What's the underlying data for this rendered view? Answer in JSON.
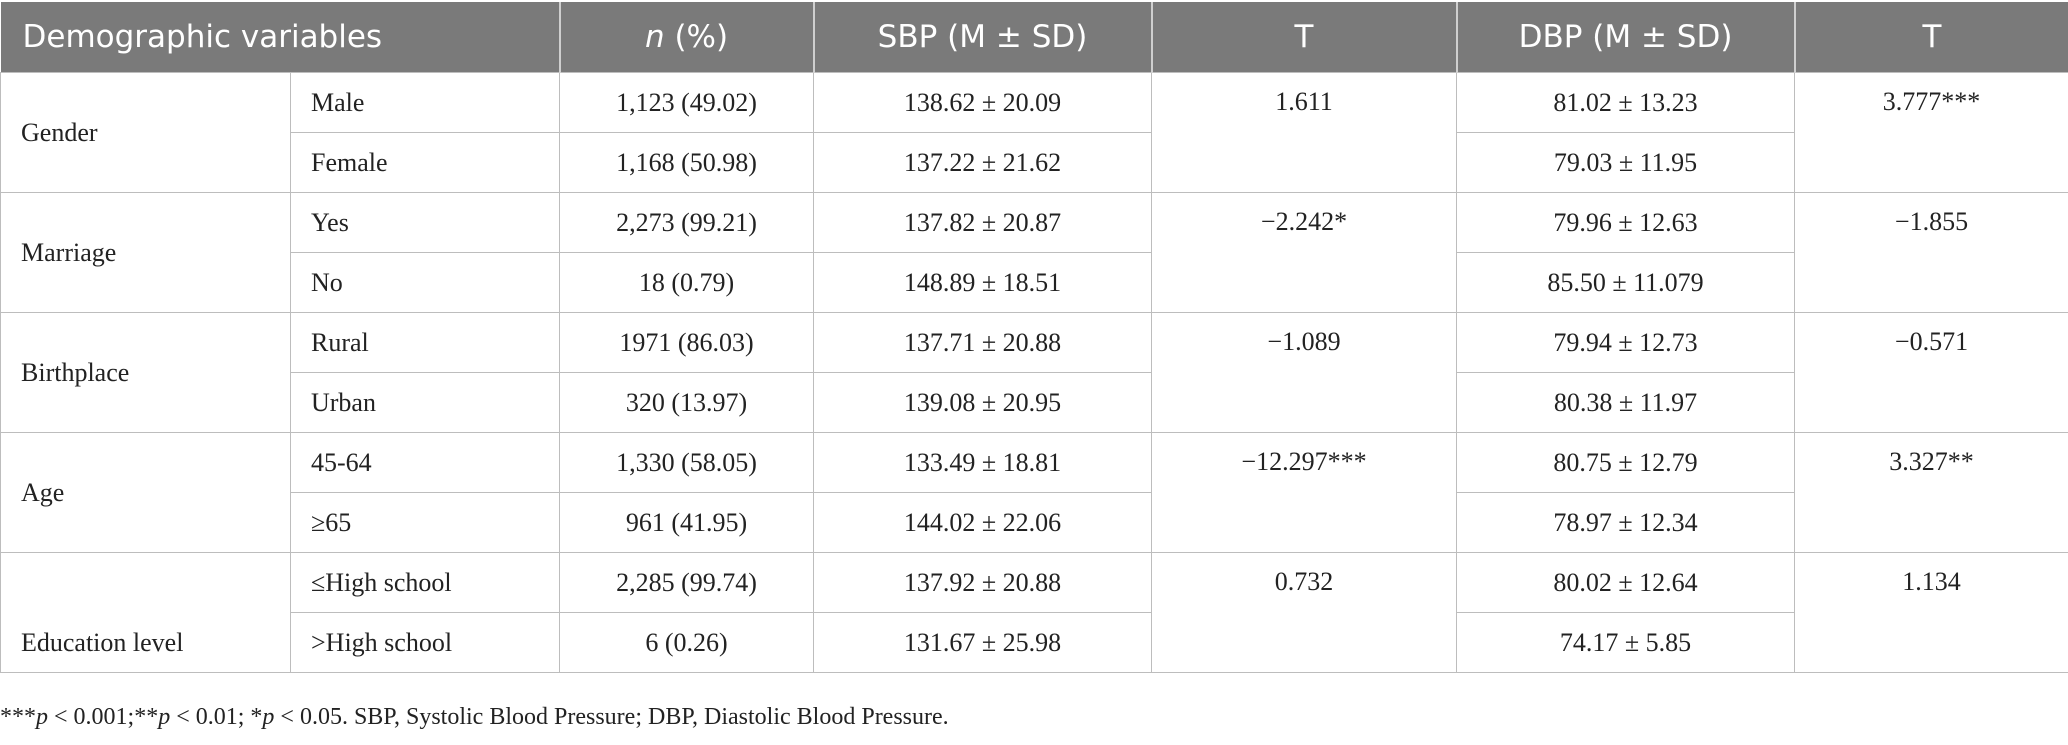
{
  "table": {
    "headers": {
      "demographic": "Demographic variables",
      "n_italic": "n",
      "n_rest": " (%)",
      "sbp": "SBP (M ± SD)",
      "t1": "T",
      "dbp": "DBP (M ± SD)",
      "t2": "T"
    },
    "groups": [
      {
        "name": "Gender",
        "rows": [
          {
            "level": "Male",
            "n": "1,123 (49.02)",
            "sbp": "138.62 ± 20.09",
            "t_sbp": "1.611",
            "dbp": "81.02 ± 13.23",
            "t_dbp": "3.777***"
          },
          {
            "level": "Female",
            "n": "1,168 (50.98)",
            "sbp": "137.22 ± 21.62",
            "t_sbp": "",
            "dbp": "79.03 ± 11.95",
            "t_dbp": ""
          }
        ]
      },
      {
        "name": "Marriage",
        "rows": [
          {
            "level": "Yes",
            "n": "2,273 (99.21)",
            "sbp": "137.82 ± 20.87",
            "t_sbp": "−2.242*",
            "dbp": "79.96 ± 12.63",
            "t_dbp": "−1.855"
          },
          {
            "level": "No",
            "n": "18 (0.79)",
            "sbp": "148.89 ± 18.51",
            "t_sbp": "",
            "dbp": "85.50 ± 11.079",
            "t_dbp": ""
          }
        ]
      },
      {
        "name": "Birthplace",
        "rows": [
          {
            "level": "Rural",
            "n": "1971 (86.03)",
            "sbp": "137.71 ± 20.88",
            "t_sbp": "−1.089",
            "dbp": "79.94 ± 12.73",
            "t_dbp": "−0.571"
          },
          {
            "level": "Urban",
            "n": "320 (13.97)",
            "sbp": "139.08 ± 20.95",
            "t_sbp": "",
            "dbp": "80.38 ± 11.97",
            "t_dbp": ""
          }
        ]
      },
      {
        "name": "Age",
        "rows": [
          {
            "level": "45-64",
            "n": "1,330 (58.05)",
            "sbp": "133.49 ± 18.81",
            "t_sbp": "−12.297***",
            "dbp": "80.75 ± 12.79",
            "t_dbp": "3.327**"
          },
          {
            "level": "≥65",
            "n": "961 (41.95)",
            "sbp": "144.02 ± 22.06",
            "t_sbp": "",
            "dbp": "78.97 ± 12.34",
            "t_dbp": ""
          }
        ]
      },
      {
        "name": "Education level",
        "rows": [
          {
            "level": "≤High school",
            "n": "2,285 (99.74)",
            "sbp": "137.92 ± 20.88",
            "t_sbp": "0.732",
            "dbp": "80.02 ± 12.64",
            "t_dbp": "1.134"
          },
          {
            "level": ">High school",
            "n": "6 (0.26)",
            "sbp": "131.67 ± 25.98",
            "t_sbp": "",
            "dbp": "74.17 ± 5.85",
            "t_dbp": ""
          }
        ]
      }
    ]
  },
  "footnote": {
    "s1": "***",
    "p1": "p",
    "s2": " < 0.001;**",
    "p2": "p",
    "s3": " < 0.01; *",
    "p3": "p",
    "s4": " < 0.05. SBP, Systolic Blood Pressure; DBP, Diastolic Blood Pressure."
  }
}
